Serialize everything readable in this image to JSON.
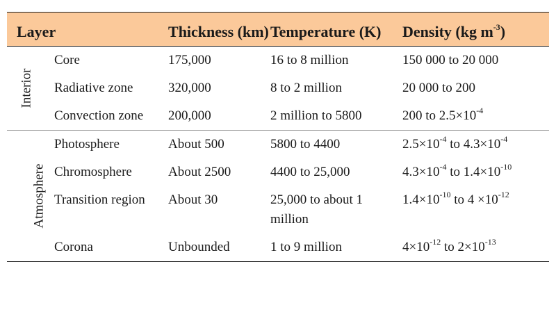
{
  "table": {
    "headers": {
      "layer": "Layer",
      "thickness": "Thickness (km)",
      "temperature": "Temperature (K)",
      "density": "Density (kg m",
      "density_sup": "-3",
      "density_close": ")"
    },
    "groups": {
      "interior": {
        "label": "Interior",
        "rows": [
          {
            "name": "Core",
            "thickness": "175,000",
            "temperature": "16 to 8 million",
            "density": "150 000 to 20 000"
          },
          {
            "name": "Radiative zone",
            "thickness": "320,000",
            "temperature": "8 to 2 million",
            "density": "20 000 to 200"
          },
          {
            "name": "Convection zone",
            "thickness": "200,000",
            "temperature": "2 million to 5800",
            "density_base": "200 to 2.5×10",
            "density_sup": "-4"
          }
        ]
      },
      "atmosphere": {
        "label": "Atmosphere",
        "rows": [
          {
            "name": "Photosphere",
            "thickness": "About 500",
            "temperature": "5800 to 4400",
            "d1": "2.5×10",
            "s1": "-4",
            "d2": " to 4.3×10",
            "s2": "-4"
          },
          {
            "name": "Chromosphere",
            "thickness": "About 2500",
            "temperature": "4400 to 25,000",
            "d1": "4.3×10",
            "s1": "-4",
            "d2": " to 1.4×10",
            "s2": "-10"
          },
          {
            "name": "Transition region",
            "thickness": "About 30",
            "temperature": "25,000 to about 1 million",
            "d1": "1.4×10",
            "s1": "-10",
            "d2": " to 4 ×10",
            "s2": "-12"
          },
          {
            "name": "Corona",
            "thickness": "Unbounded",
            "temperature": "1 to 9 million",
            "d1": "4×10",
            "s1": "-12",
            "d2": " to 2×10",
            "s2": "-13"
          }
        ]
      }
    },
    "colors": {
      "header_bg": "#fbc99a",
      "rule": "#1a1a1a"
    }
  }
}
